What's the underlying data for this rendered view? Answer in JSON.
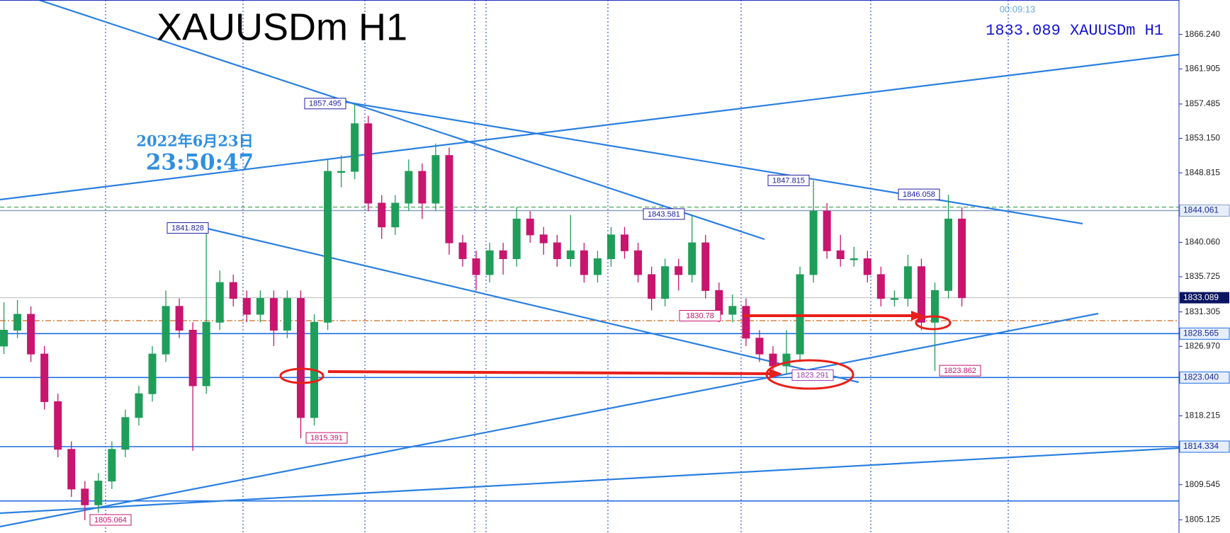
{
  "chart_data": {
    "type": "candlestick",
    "title": "XAUUSDm H1",
    "symbol_label": "1833.089 XAUUSDm H1",
    "timer": "00:09:13",
    "date": "2022年6月23日",
    "time": "23:50:47",
    "ylim": [
      1803.46,
      1870.58
    ],
    "yticks": [
      {
        "value": 1866.24,
        "label": "1866.240"
      },
      1861.905,
      1857.485,
      {
        "value": 1853.15,
        "label": "1853.150"
      },
      1848.815,
      {
        "value": 1840.06,
        "label": "1840.060"
      },
      1835.725,
      1831.305,
      {
        "value": 1826.97,
        "label": "1826.970"
      },
      1818.215,
      1809.545,
      1805.125
    ],
    "colors": {
      "up": "#1f9e5a",
      "down": "#c8156e"
    },
    "candles": {
      "open": [
        1827,
        1829,
        1831,
        1826,
        1820,
        1814,
        1809,
        1807,
        1810,
        1814,
        1818,
        1821,
        1826,
        1832,
        1829,
        1822,
        1830,
        1835,
        1833,
        1831,
        1833,
        1829,
        1833,
        1818,
        1830,
        1849,
        1849,
        1855,
        1845,
        1842,
        1845,
        1849,
        1845,
        1851,
        1840,
        1838,
        1836,
        1839,
        1838,
        1843,
        1841,
        1840,
        1838,
        1839,
        1836,
        1838,
        1841,
        1839,
        1836,
        1833,
        1837,
        1836,
        1840,
        1834,
        1831,
        1832,
        1828,
        1826,
        1824.5,
        1826,
        1836,
        1844,
        1839,
        1838,
        1838,
        1836,
        1833,
        1833,
        1837,
        1830,
        1834,
        1843
      ],
      "high": [
        1832.5,
        1832.8,
        1832,
        1827,
        1821,
        1815,
        1810,
        1811,
        1815,
        1819,
        1822,
        1827,
        1834,
        1833,
        1830,
        1841.828,
        1836.5,
        1836,
        1834,
        1834,
        1834,
        1834,
        1834,
        1831,
        1850.5,
        1851,
        1857.495,
        1856,
        1846,
        1846,
        1850.5,
        1850,
        1852.5,
        1852,
        1841,
        1839,
        1840,
        1840,
        1844.5,
        1844,
        1842,
        1841,
        1843.5,
        1840,
        1839,
        1842,
        1842,
        1840,
        1837,
        1838,
        1838,
        1843.581,
        1841,
        1835,
        1833.5,
        1833,
        1829,
        1827,
        1829,
        1837,
        1847.815,
        1845,
        1841,
        1839.5,
        1839,
        1837,
        1834,
        1838.5,
        1838,
        1835,
        1846.058,
        1844.5
      ],
      "low": [
        1826,
        1828,
        1825,
        1819,
        1813,
        1808,
        1805.064,
        1806,
        1809,
        1813,
        1817,
        1820,
        1825,
        1828,
        1813.8,
        1821,
        1829,
        1832,
        1830,
        1830,
        1827,
        1828,
        1815.391,
        1817,
        1829,
        1847,
        1848,
        1844,
        1840.5,
        1841,
        1844,
        1843,
        1844,
        1838.5,
        1837,
        1834,
        1835,
        1836,
        1837,
        1840,
        1838.5,
        1837,
        1837,
        1835,
        1835,
        1837,
        1838,
        1835,
        1831.5,
        1832,
        1834,
        1835,
        1833,
        1830,
        1830,
        1827,
        1825,
        1823.291,
        1823.5,
        1825,
        1835,
        1838,
        1837,
        1837,
        1835,
        1832,
        1832,
        1832,
        1829,
        1823.862,
        1833,
        1832
      ],
      "close": [
        1829,
        1831,
        1826,
        1820,
        1814,
        1809,
        1807,
        1810,
        1814,
        1818,
        1821,
        1826,
        1832,
        1829,
        1822,
        1830,
        1835,
        1833,
        1831,
        1833,
        1829,
        1833,
        1818,
        1830,
        1849,
        1849,
        1855,
        1845,
        1842,
        1845,
        1849,
        1845,
        1851,
        1840,
        1838,
        1836,
        1839,
        1838,
        1843,
        1841,
        1840,
        1838,
        1839,
        1836,
        1838,
        1841,
        1839,
        1836,
        1833,
        1837,
        1836,
        1840,
        1834,
        1831,
        1832,
        1828,
        1826,
        1824.5,
        1826,
        1836,
        1844,
        1839,
        1838,
        1838,
        1836,
        1833,
        1833,
        1837,
        1830,
        1834,
        1843,
        1833.089
      ]
    },
    "levels": [
      {
        "value": 1844.5,
        "color": "#3aa04a",
        "style": "dashed"
      },
      {
        "value": 1844.061,
        "label": "1844.061",
        "color": "#8aa0c0",
        "style": "solid"
      },
      {
        "value": 1830.2,
        "color": "#d2691e",
        "style": "dashdot"
      },
      {
        "value": 1828.565,
        "label": "1828.565",
        "color": "#1e6fe0",
        "style": "solid"
      },
      {
        "value": 1823.04,
        "label": "1823.040",
        "color": "#1e6fe0",
        "style": "solid"
      },
      {
        "value": 1814.334,
        "label": "1814.334",
        "color": "#1e6fe0",
        "style": "solid"
      },
      {
        "value": 1807.5,
        "color": "#1e6fe0",
        "style": "solid"
      }
    ],
    "annotations": [
      {
        "value": 1857.495,
        "color": "#2020a0"
      },
      {
        "value": 1841.828,
        "color": "#2020a0"
      },
      {
        "value": 1843.581,
        "color": "#2020a0"
      },
      {
        "value": 1847.815,
        "color": "#2020a0"
      },
      {
        "value": 1846.058,
        "color": "#2020a0"
      },
      {
        "value": 1830.78,
        "color": "#c8156e"
      },
      {
        "value": 1823.291,
        "color": "#9a3fb0"
      },
      {
        "value": 1823.862,
        "color": "#c8156e"
      },
      {
        "value": 1815.391,
        "color": "#c8156e"
      },
      {
        "value": 1805.064,
        "color": "#c8156e"
      }
    ]
  }
}
